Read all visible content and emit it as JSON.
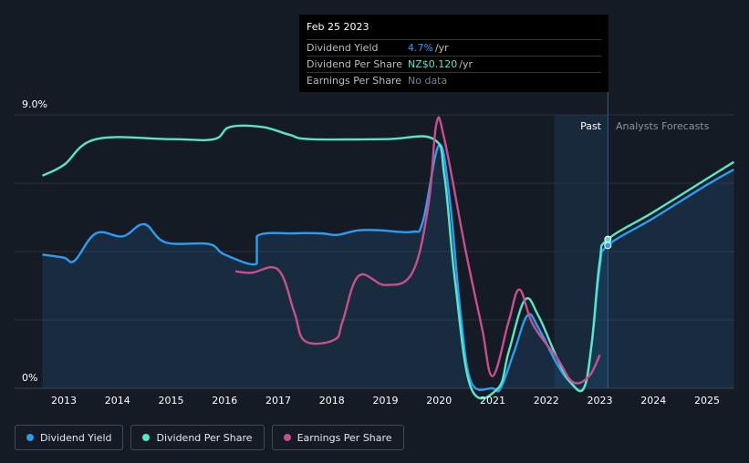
{
  "tooltip": {
    "date": "Feb 25 2023",
    "rows": [
      {
        "label": "Dividend Yield",
        "value": "4.7%",
        "unit": "/yr"
      },
      {
        "label": "Dividend Per Share",
        "value": "NZ$0.120",
        "unit": "/yr"
      },
      {
        "label": "Earnings Per Share",
        "value": "No data",
        "unit": ""
      }
    ]
  },
  "sections": {
    "past": "Past",
    "forecast": "Analysts Forecasts"
  },
  "legend": [
    {
      "label": "Dividend Yield",
      "color": "#2a9df4"
    },
    {
      "label": "Dividend Per Share",
      "color": "#59e6c7"
    },
    {
      "label": "Earnings Per Share",
      "color": "#c84f8f"
    }
  ],
  "colors": {
    "background": "#151b24",
    "yield": "#2a9df4",
    "dps": "#59e6c7",
    "eps": "#c84f8f",
    "eps_negative": "#e0454e",
    "forecast_band": "#1a3b58"
  },
  "chart_data": {
    "type": "line",
    "ylabel_top": "9.0%",
    "ylabel_bottom": "0%",
    "ylim": [
      0,
      9.0
    ],
    "xlim": [
      2012.6,
      2025.5
    ],
    "x_ticks": [
      "2013",
      "2014",
      "2015",
      "2016",
      "2017",
      "2018",
      "2019",
      "2020",
      "2021",
      "2022",
      "2023",
      "2024",
      "2025"
    ],
    "past_forecast_boundary": 2023.15,
    "series": [
      {
        "name": "Dividend Yield",
        "points": [
          [
            2012.6,
            4.4
          ],
          [
            2013.0,
            4.3
          ],
          [
            2013.2,
            4.2
          ],
          [
            2013.6,
            5.1
          ],
          [
            2014.1,
            5.0
          ],
          [
            2014.5,
            5.4
          ],
          [
            2014.9,
            4.8
          ],
          [
            2015.7,
            4.75
          ],
          [
            2016.0,
            4.4
          ],
          [
            2016.6,
            4.1
          ],
          [
            2016.6,
            5.0
          ],
          [
            2017.3,
            5.1
          ],
          [
            2017.8,
            5.1
          ],
          [
            2018.1,
            5.05
          ],
          [
            2018.5,
            5.2
          ],
          [
            2018.9,
            5.2
          ],
          [
            2019.5,
            5.15
          ],
          [
            2019.7,
            5.5
          ],
          [
            2020.0,
            8.0
          ],
          [
            2020.2,
            6.2
          ],
          [
            2020.4,
            2.5
          ],
          [
            2020.6,
            0.2
          ],
          [
            2021.0,
            0.0
          ],
          [
            2021.15,
            0.0
          ],
          [
            2021.4,
            1.2
          ],
          [
            2021.65,
            2.4
          ],
          [
            2021.85,
            2.0
          ],
          [
            2022.2,
            0.8
          ],
          [
            2022.45,
            0.2
          ],
          [
            2022.7,
            0.0
          ],
          [
            2022.85,
            1.5
          ],
          [
            2023.0,
            4.0
          ],
          [
            2023.15,
            4.7
          ],
          [
            2024.0,
            5.6
          ],
          [
            2025.0,
            6.7
          ],
          [
            2025.5,
            7.2
          ]
        ]
      },
      {
        "name": "Dividend Per Share",
        "points": [
          [
            2012.6,
            7.0
          ],
          [
            2013.0,
            7.35
          ],
          [
            2013.6,
            8.2
          ],
          [
            2015.0,
            8.2
          ],
          [
            2015.8,
            8.2
          ],
          [
            2016.1,
            8.6
          ],
          [
            2016.7,
            8.6
          ],
          [
            2017.2,
            8.35
          ],
          [
            2017.6,
            8.2
          ],
          [
            2019.0,
            8.2
          ],
          [
            2019.9,
            8.2
          ],
          [
            2020.1,
            7.0
          ],
          [
            2020.3,
            3.5
          ],
          [
            2020.6,
            0.0
          ],
          [
            2021.1,
            0.0
          ],
          [
            2021.3,
            1.2
          ],
          [
            2021.6,
            2.9
          ],
          [
            2021.85,
            2.4
          ],
          [
            2022.2,
            1.0
          ],
          [
            2022.45,
            0.2
          ],
          [
            2022.7,
            0.0
          ],
          [
            2022.85,
            1.5
          ],
          [
            2023.0,
            4.2
          ],
          [
            2023.15,
            4.9
          ],
          [
            2024.0,
            5.8
          ],
          [
            2025.0,
            6.9
          ],
          [
            2025.5,
            7.45
          ]
        ]
      },
      {
        "name": "Earnings Per Share",
        "points": [
          [
            2016.2,
            3.85
          ],
          [
            2016.5,
            3.8
          ],
          [
            2017.0,
            3.9
          ],
          [
            2017.3,
            2.5
          ],
          [
            2017.5,
            1.55
          ],
          [
            2018.05,
            1.6
          ],
          [
            2018.2,
            2.2
          ],
          [
            2018.5,
            3.7
          ],
          [
            2019.0,
            3.4
          ],
          [
            2019.5,
            3.8
          ],
          [
            2019.8,
            6.0
          ],
          [
            2019.95,
            8.7
          ],
          [
            2020.1,
            8.2
          ],
          [
            2020.5,
            4.5
          ],
          [
            2020.8,
            2.0
          ],
          [
            2021.0,
            0.4
          ],
          [
            2021.3,
            2.2
          ],
          [
            2021.5,
            3.25
          ],
          [
            2021.75,
            2.1
          ],
          [
            2022.2,
            1.0
          ],
          [
            2022.5,
            0.2
          ],
          [
            2022.8,
            0.4
          ],
          [
            2023.0,
            1.1
          ]
        ]
      }
    ]
  }
}
